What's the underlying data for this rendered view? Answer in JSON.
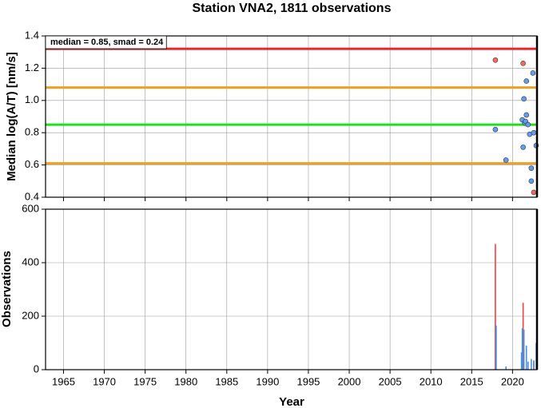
{
  "chart_data": [
    {
      "type": "scatter",
      "title": "Station VNA2, 1811 observations",
      "annotation": "median = 0.85, smad = 0.24",
      "ylabel": "Median log(A/T) [nm/s]",
      "xlim": [
        1962.8,
        2023.0
      ],
      "xticks": [
        1965,
        1970,
        1975,
        1980,
        1985,
        1990,
        1995,
        2000,
        2005,
        2010,
        2015,
        2020
      ],
      "ylim": [
        0.4,
        1.4
      ],
      "yticks": [
        0.4,
        0.6,
        0.8,
        {
          "value": 1,
          "label": "1.0"
        },
        1.2,
        1.4
      ],
      "grid": true,
      "hlines": [
        {
          "value": 1.32,
          "color": "#e8262a"
        },
        {
          "value": 1.08,
          "color": "#f0a020"
        },
        {
          "value": 0.85,
          "color": "#22dd22"
        },
        {
          "value": 0.61,
          "color": "#f0a020"
        }
      ],
      "series": [
        {
          "color": "#f26b60",
          "x": [
            2017.9,
            2021.3,
            2022.6
          ],
          "values": [
            1.25,
            1.23,
            0.43
          ]
        },
        {
          "color": "#5f9ef0",
          "x": [
            2017.9,
            2019.2,
            2021.2,
            2021.3,
            2021.4,
            2021.5,
            2021.6,
            2021.7,
            2021.7,
            2021.9,
            2022.1,
            2022.3,
            2022.3,
            2022.5,
            2022.6,
            2022.9
          ],
          "values": [
            0.82,
            0.63,
            0.88,
            0.71,
            1.01,
            0.86,
            0.87,
            0.91,
            1.12,
            0.85,
            0.79,
            0.58,
            0.5,
            1.17,
            0.8,
            0.72
          ]
        }
      ]
    },
    {
      "type": "bar",
      "xlabel": "Year",
      "ylabel": "Observations",
      "xlim": [
        1962.8,
        2023.0
      ],
      "xticks": [
        1965,
        1970,
        1975,
        1980,
        1985,
        1990,
        1995,
        2000,
        2005,
        2010,
        2015,
        2020
      ],
      "ylim": [
        0,
        600
      ],
      "yticks": [
        0,
        200,
        400,
        600
      ],
      "grid": true,
      "series": [
        {
          "color": "#f04040",
          "x": [
            2017.9,
            2021.3,
            2022.6
          ],
          "values": [
            470,
            250,
            30
          ]
        },
        {
          "color": "#4a90e0",
          "x": [
            2018.0,
            2019.2,
            2021.1,
            2021.2,
            2021.4,
            2021.7,
            2021.9,
            2022.3,
            2022.6,
            2022.9
          ],
          "values": [
            165,
            12,
            65,
            155,
            150,
            90,
            30,
            40,
            35,
            100
          ]
        }
      ]
    }
  ]
}
